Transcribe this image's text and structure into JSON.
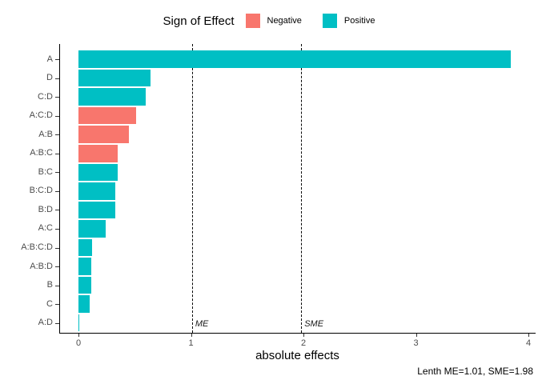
{
  "legend": {
    "title": "Sign of Effect",
    "items": [
      {
        "label": "Negative",
        "color": "#F8766D"
      },
      {
        "label": "Positive",
        "color": "#00BFC4"
      }
    ]
  },
  "chart_data": {
    "type": "bar",
    "orientation": "horizontal",
    "xlabel": "absolute effects",
    "categories": [
      "A",
      "D",
      "C:D",
      "A:C:D",
      "A:B",
      "A:B:C",
      "B:C",
      "B:C:D",
      "B:D",
      "A:C",
      "A:B:C:D",
      "A:B:D",
      "B",
      "C",
      "A:D"
    ],
    "values": [
      3.84,
      0.64,
      0.6,
      0.51,
      0.45,
      0.35,
      0.35,
      0.33,
      0.33,
      0.24,
      0.12,
      0.11,
      0.11,
      0.1,
      0.01
    ],
    "signs": [
      "Positive",
      "Positive",
      "Positive",
      "Negative",
      "Negative",
      "Negative",
      "Positive",
      "Positive",
      "Positive",
      "Positive",
      "Positive",
      "Positive",
      "Positive",
      "Positive",
      "Positive"
    ],
    "sign_colors": {
      "Negative": "#F8766D",
      "Positive": "#00BFC4"
    },
    "xlim": [
      0,
      4
    ],
    "x_ticks": [
      "0",
      "1",
      "2",
      "3",
      "4"
    ],
    "grid": false,
    "legend_position": "top",
    "reference_lines": [
      {
        "label": "ME",
        "value": 1.01
      },
      {
        "label": "SME",
        "value": 1.98
      }
    ]
  },
  "caption": "Lenth ME=1.01, SME=1.98"
}
